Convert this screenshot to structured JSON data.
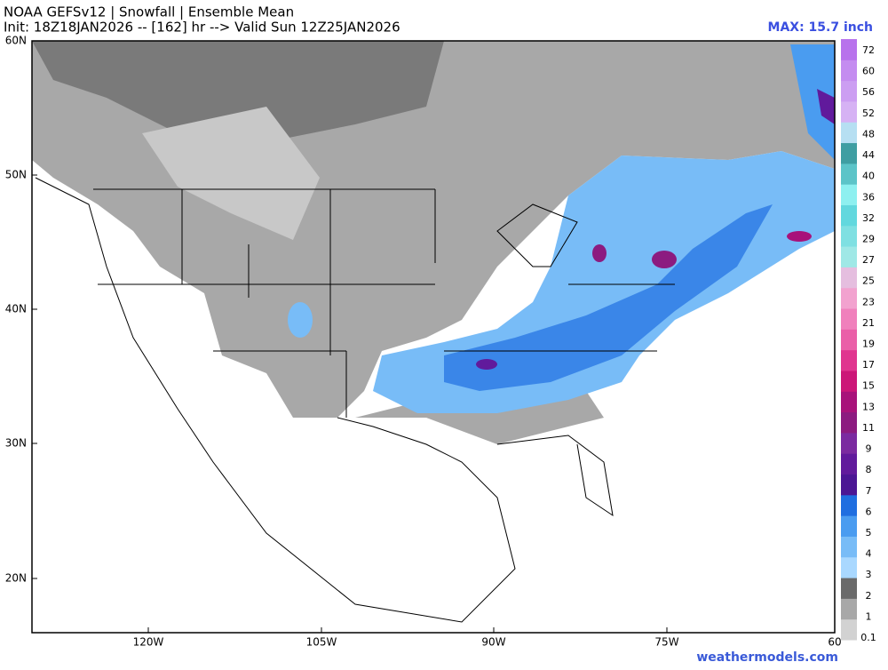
{
  "header": {
    "title": "NOAA GEFSv12 | Snowfall | Ensemble Mean",
    "subtitle": "Init: 18Z18JAN2026 -- [162] hr --> Valid Sun 12Z25JAN2026",
    "max": "MAX: 15.7 inch"
  },
  "lat_labels": [
    "60N",
    "50N",
    "40N",
    "30N",
    "20N"
  ],
  "lon_labels": [
    "120W",
    "105W",
    "90W",
    "75W",
    "60"
  ],
  "colorbar": [
    {
      "label": "0.1",
      "color": "#d2d2d2"
    },
    {
      "label": "1",
      "color": "#a8a8a8"
    },
    {
      "label": "2",
      "color": "#6a6a6a"
    },
    {
      "label": "3",
      "color": "#a9d8ff"
    },
    {
      "label": "4",
      "color": "#78bcf7"
    },
    {
      "label": "5",
      "color": "#4a9cf0"
    },
    {
      "label": "6",
      "color": "#1f6ee0"
    },
    {
      "label": "7",
      "color": "#4b1694"
    },
    {
      "label": "8",
      "color": "#611a9c"
    },
    {
      "label": "9",
      "color": "#7b2aa0"
    },
    {
      "label": "11",
      "color": "#8c1b80"
    },
    {
      "label": "13",
      "color": "#a8127a"
    },
    {
      "label": "15",
      "color": "#cc1678"
    },
    {
      "label": "17",
      "color": "#e0358f"
    },
    {
      "label": "19",
      "color": "#ea5fa8"
    },
    {
      "label": "21",
      "color": "#f080bc"
    },
    {
      "label": "23",
      "color": "#f2a2cf"
    },
    {
      "label": "25",
      "color": "#e5bedf"
    },
    {
      "label": "27",
      "color": "#9fe8e6"
    },
    {
      "label": "29",
      "color": "#7fe0e2"
    },
    {
      "label": "32",
      "color": "#62d8de"
    },
    {
      "label": "36",
      "color": "#8ef0f0"
    },
    {
      "label": "40",
      "color": "#5cc4c8"
    },
    {
      "label": "44",
      "color": "#3f9ea2"
    },
    {
      "label": "48",
      "color": "#b6dff2"
    },
    {
      "label": "52",
      "color": "#d6b2f4"
    },
    {
      "label": "56",
      "color": "#cc9ef2"
    },
    {
      "label": "60",
      "color": "#c48cf0"
    },
    {
      "label": "72",
      "color": "#b872ec"
    }
  ],
  "watermark": "weathermodels.com"
}
